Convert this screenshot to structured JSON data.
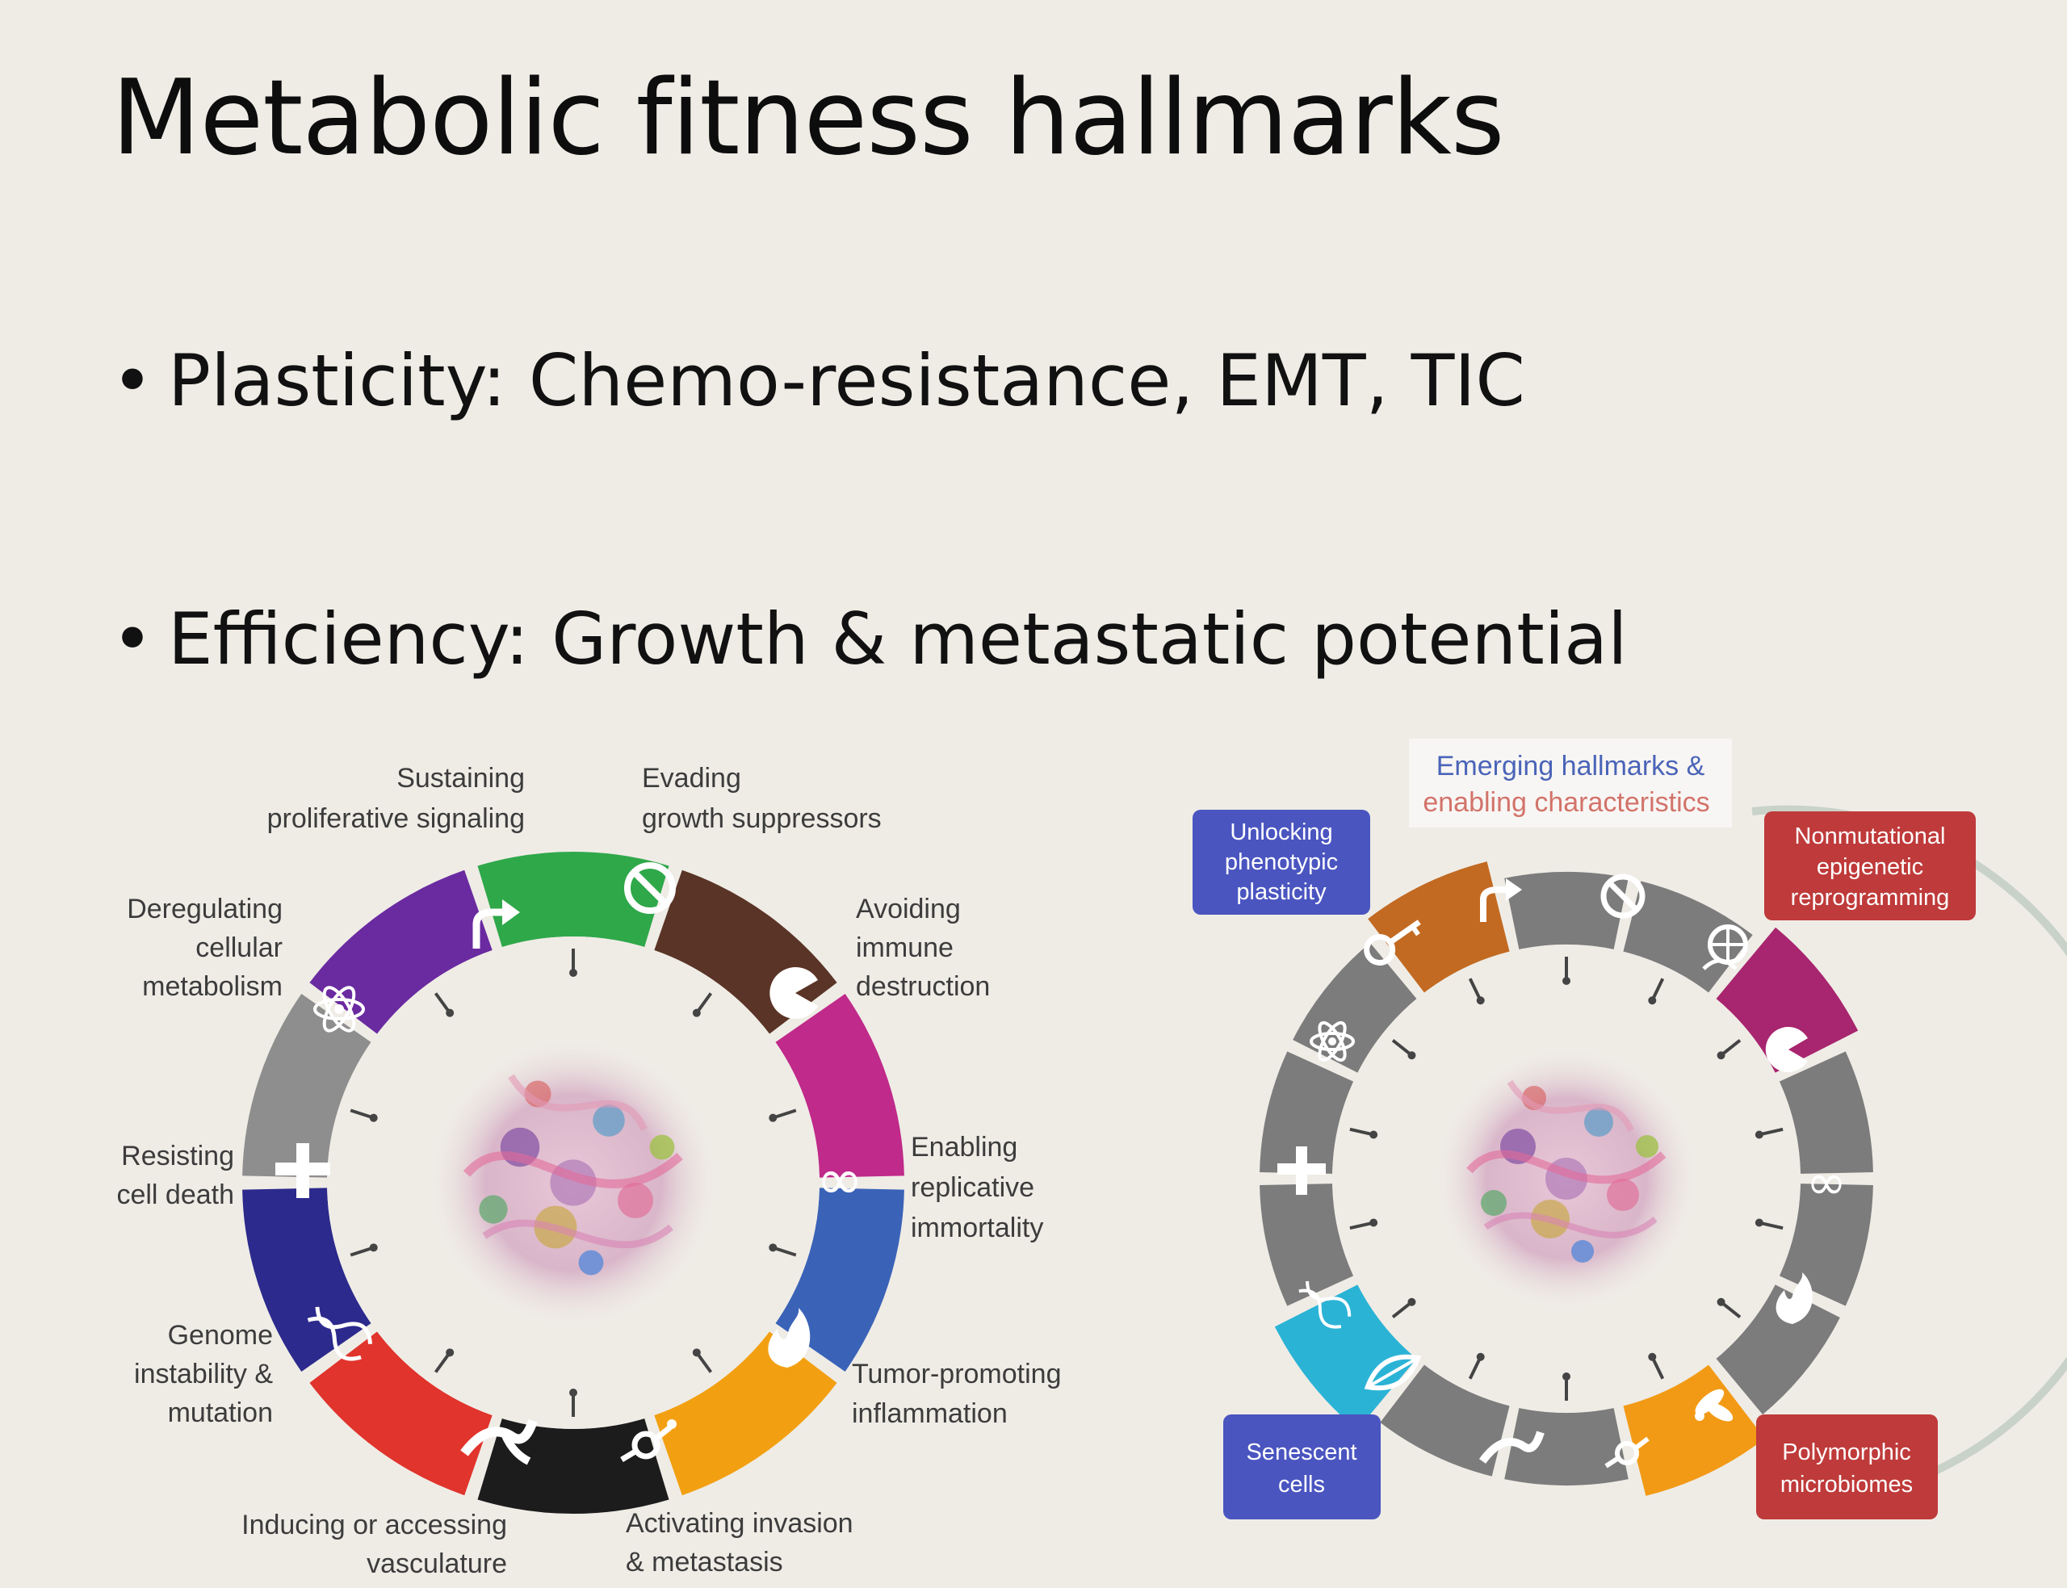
{
  "slide": {
    "title": "Metabolic fitness hallmarks",
    "bullets": [
      "Plasticity: Chemo-resistance, EMT, TIC",
      "Efficiency: Growth & metastatic potential"
    ],
    "bullet_glyph": "•"
  },
  "left_wheel": {
    "labels": {
      "sustaining_line1": "Sustaining",
      "sustaining_line2": "proliferative signaling",
      "evading_line1": "Evading",
      "evading_line2": "growth suppressors",
      "avoiding_line1": "Avoiding",
      "avoiding_line2": "immune",
      "avoiding_line3": "destruction",
      "enabling_line1": "Enabling",
      "enabling_line2": "replicative",
      "enabling_line3": "immortality",
      "tumor_line1": "Tumor-promoting",
      "tumor_line2": "inflammation",
      "activating_line1": "Activating invasion",
      "activating_line2": "& metastasis",
      "inducing_line1": "Inducing or accessing",
      "inducing_line2": "vasculature",
      "genome_line1": "Genome",
      "genome_line2": "instability &",
      "genome_line3": "mutation",
      "resisting_line1": "Resisting",
      "resisting_line2": "cell death",
      "deregulating_line1": "Deregulating",
      "deregulating_line2": "cellular",
      "deregulating_line3": "metabolism"
    },
    "segment_colors": [
      "#2fa84a",
      "#5a3426",
      "#c02a8a",
      "#3a63b8",
      "#f2a012",
      "#1c1c1c",
      "#e0342c",
      "#2c2a8c",
      "#8e8e8e",
      "#6a2aa0"
    ],
    "segment_icons": [
      "arrow-icon",
      "prohibition-icon",
      "pacman-icon",
      "infinity-icon",
      "flame-icon",
      "invasion-icon",
      "vessel-icon",
      "dna-icon",
      "cross-icon",
      "atom-icon"
    ],
    "infinity_glyph": "∞"
  },
  "right_wheel": {
    "header_line1": "Emerging hallmarks &",
    "header_line2": "enabling characteristics",
    "boxes": {
      "unlocking_line1": "Unlocking",
      "unlocking_line2": "phenotypic",
      "unlocking_line3": "plasticity",
      "nonmutational_line1": "Nonmutational",
      "nonmutational_line2": "epigenetic",
      "nonmutational_line3": "reprogramming",
      "senescent_line1": "Senescent",
      "senescent_line2": "cells",
      "polymorphic_line1": "Polymorphic",
      "polymorphic_line2": "microbiomes"
    },
    "infinity_glyph": "∞",
    "accent_colors": {
      "unlocking": "#c26a22",
      "nonmutational": "#a8256f",
      "senescent": "#2bb3d6",
      "polymorphic": "#f29a16",
      "blue_box": "#4a55c0",
      "red_box": "#bf3a3a",
      "grey_segment": "#7c7c7c"
    }
  }
}
